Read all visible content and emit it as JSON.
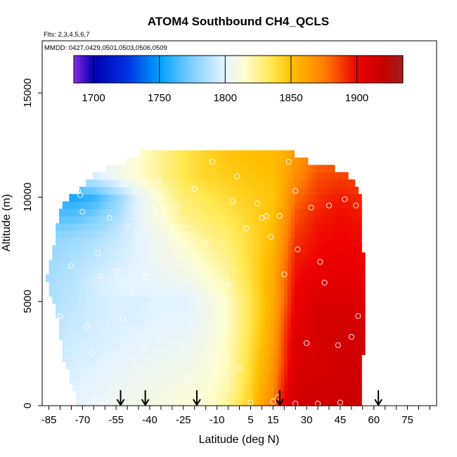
{
  "chart_data": {
    "type": "heatmap",
    "title": "ATOM4 Southbound CH4_QCLS",
    "flights_note": "Flts: 2,3,4,5,6,7",
    "dates_note": "MMDD: 0427,0429,0501,0503,0506,0509",
    "xlabel": "Latitude (deg N)",
    "ylabel": "Altitude (m)",
    "xlim": [
      -88,
      88
    ],
    "ylim": [
      0,
      17500
    ],
    "x_ticks_minor": [
      -85,
      -80,
      -75,
      -70,
      -65,
      -60,
      -55,
      -50,
      -45,
      -40,
      -35,
      -30,
      -25,
      -20,
      -15,
      -10,
      -5,
      0,
      5,
      10,
      15,
      20,
      25,
      30,
      35,
      40,
      45,
      50,
      55,
      60,
      65,
      70,
      75,
      80,
      85
    ],
    "x_tick_labels": [
      "-85",
      "-70",
      "-55",
      "-40",
      "-25",
      "-10",
      "5",
      "15",
      "30",
      "45",
      "60",
      "75"
    ],
    "y_ticks": [
      0,
      5000,
      10000,
      15000
    ],
    "y_tick_labels": [
      "0",
      "5000",
      "10000",
      "15000"
    ],
    "colorbar": {
      "min": 1685,
      "max": 1935,
      "ticks": [
        1700,
        1750,
        1800,
        1850,
        1900
      ],
      "tick_labels": [
        "1700",
        "1750",
        "1800",
        "1850",
        "1900"
      ],
      "stops": [
        {
          "v": 1685,
          "c": "#8a2be2"
        },
        {
          "v": 1700,
          "c": "#0000b0"
        },
        {
          "v": 1725,
          "c": "#0030e0"
        },
        {
          "v": 1750,
          "c": "#00a0ff"
        },
        {
          "v": 1775,
          "c": "#80d0ff"
        },
        {
          "v": 1800,
          "c": "#e6f4ff"
        },
        {
          "v": 1815,
          "c": "#fffdd0"
        },
        {
          "v": 1835,
          "c": "#ffe850"
        },
        {
          "v": 1850,
          "c": "#ffc000"
        },
        {
          "v": 1875,
          "c": "#ff8000"
        },
        {
          "v": 1900,
          "c": "#ee0000"
        },
        {
          "v": 1920,
          "c": "#c80000"
        },
        {
          "v": 1935,
          "c": "#a02020"
        }
      ]
    },
    "field": {
      "altitudes_m": [
        0,
        1000,
        2000,
        3000,
        4000,
        5000,
        6000,
        7000,
        8000,
        9000,
        10000,
        11000,
        12000
      ],
      "latitudes": [
        -85,
        -75,
        -65,
        -55,
        -45,
        -35,
        -25,
        -15,
        -5,
        5,
        15,
        20,
        25,
        35,
        45,
        55
      ],
      "ch4_ppb": [
        [
          1798,
          1800,
          1802,
          1805,
          1808,
          1810,
          1812,
          1815,
          1825,
          1845,
          1875,
          1905,
          1915,
          1915,
          1918,
          1920
        ],
        [
          1795,
          1798,
          1800,
          1803,
          1806,
          1808,
          1810,
          1812,
          1820,
          1842,
          1870,
          1895,
          1912,
          1915,
          1915,
          1918
        ],
        [
          1793,
          1796,
          1798,
          1800,
          1803,
          1805,
          1806,
          1810,
          1818,
          1840,
          1866,
          1890,
          1910,
          1912,
          1915,
          1915
        ],
        [
          1790,
          1794,
          1796,
          1798,
          1800,
          1802,
          1803,
          1808,
          1818,
          1838,
          1862,
          1888,
          1908,
          1912,
          1915,
          1915
        ],
        [
          1788,
          1792,
          1795,
          1797,
          1798,
          1800,
          1800,
          1806,
          1816,
          1836,
          1860,
          1885,
          1905,
          1912,
          1912,
          1912
        ],
        [
          1786,
          1790,
          1794,
          1797,
          1797,
          1798,
          1798,
          1806,
          1816,
          1836,
          1858,
          1880,
          1902,
          1910,
          1910,
          1908
        ],
        [
          1785,
          1788,
          1795,
          1800,
          1800,
          1802,
          1805,
          1812,
          1822,
          1838,
          1858,
          1878,
          1898,
          1905,
          1905,
          1905
        ],
        [
          1782,
          1786,
          1790,
          1795,
          1800,
          1805,
          1810,
          1818,
          1826,
          1840,
          1855,
          1875,
          1895,
          1900,
          1902,
          1900
        ],
        [
          1778,
          1782,
          1786,
          1792,
          1800,
          1806,
          1815,
          1825,
          1830,
          1840,
          1852,
          1870,
          1890,
          1898,
          1900,
          1898
        ],
        [
          1770,
          1768,
          1775,
          1785,
          1800,
          1812,
          1825,
          1830,
          1835,
          1842,
          1850,
          1866,
          1885,
          1895,
          1898,
          1896
        ],
        [
          1760,
          1755,
          1760,
          1778,
          1800,
          1815,
          1830,
          1835,
          1840,
          1845,
          1848,
          1860,
          1878,
          1890,
          1895,
          1892
        ],
        [
          1800,
          1790,
          1795,
          1805,
          1815,
          1825,
          1835,
          1842,
          1845,
          1848,
          1850,
          1858,
          1870,
          1885,
          1888,
          1885
        ],
        [
          1800,
          1800,
          1802,
          1808,
          1815,
          1825,
          1835,
          1842,
          1848,
          1850,
          1852,
          1856,
          1865,
          1878,
          1880,
          1880
        ]
      ],
      "coverage_by_altitude_m": [
        {
          "alt": 0,
          "lat_min": -72,
          "lat_max": 55
        },
        {
          "alt": 2000,
          "lat_min": -78,
          "lat_max": 55
        },
        {
          "alt": 4500,
          "lat_min": -82,
          "lat_max": 56
        },
        {
          "alt": 6000,
          "lat_min": -86,
          "lat_max": 56
        },
        {
          "alt": 8000,
          "lat_min": -82,
          "lat_max": 55
        },
        {
          "alt": 9600,
          "lat_min": -80,
          "lat_max": 55
        },
        {
          "alt": 10500,
          "lat_min": -70,
          "lat_max": 53
        },
        {
          "alt": 11300,
          "lat_min": -62,
          "lat_max": 45
        },
        {
          "alt": 11900,
          "lat_min": -45,
          "lat_max": 25
        },
        {
          "alt": 12000,
          "lat_min": -45,
          "lat_max": 25
        }
      ]
    },
    "samples": [
      [
        -83,
        9500
      ],
      [
        -80,
        4300
      ],
      [
        -75,
        6700
      ],
      [
        -72,
        10300
      ],
      [
        -71,
        10100
      ],
      [
        -70,
        9300
      ],
      [
        -68,
        3800
      ],
      [
        -66,
        2500
      ],
      [
        -63,
        7300
      ],
      [
        -62,
        6200
      ],
      [
        -58,
        9000
      ],
      [
        -55,
        6500
      ],
      [
        -52,
        4200
      ],
      [
        -50,
        8600
      ],
      [
        -48,
        5400
      ],
      [
        -47,
        5600
      ],
      [
        -45,
        3400
      ],
      [
        -43,
        2800
      ],
      [
        -42,
        6200
      ],
      [
        -40,
        4800
      ],
      [
        -38,
        9400
      ],
      [
        -36,
        10800
      ],
      [
        -34,
        8900
      ],
      [
        -28,
        9500
      ],
      [
        -25,
        2800
      ],
      [
        -22,
        1300
      ],
      [
        -20,
        10400
      ],
      [
        -18,
        4900
      ],
      [
        -15,
        7800
      ],
      [
        -12,
        11700
      ],
      [
        -8,
        5900
      ],
      [
        -5,
        5800
      ],
      [
        -3,
        9800
      ],
      [
        -1,
        11000
      ],
      [
        0,
        1800
      ],
      [
        3,
        8500
      ],
      [
        8,
        9700
      ],
      [
        10,
        9000
      ],
      [
        12,
        9100
      ],
      [
        14,
        8100
      ],
      [
        15,
        200
      ],
      [
        17,
        400
      ],
      [
        18,
        9100
      ],
      [
        20,
        6300
      ],
      [
        22,
        11700
      ],
      [
        25,
        10300
      ],
      [
        26,
        7500
      ],
      [
        30,
        3000
      ],
      [
        32,
        9500
      ],
      [
        36,
        6900
      ],
      [
        38,
        5900
      ],
      [
        40,
        9600
      ],
      [
        44,
        2900
      ],
      [
        47,
        9900
      ],
      [
        50,
        3300
      ],
      [
        52,
        9600
      ],
      [
        53,
        4300
      ],
      [
        -65,
        300
      ],
      [
        -60,
        200
      ],
      [
        -55,
        250
      ],
      [
        -50,
        100
      ],
      [
        -30,
        150
      ],
      [
        -10,
        200
      ],
      [
        5,
        150
      ],
      [
        25,
        100
      ],
      [
        35,
        100
      ],
      [
        45,
        150
      ]
    ],
    "flight_markers_lat": [
      -53,
      -42,
      -19,
      18,
      62
    ]
  }
}
